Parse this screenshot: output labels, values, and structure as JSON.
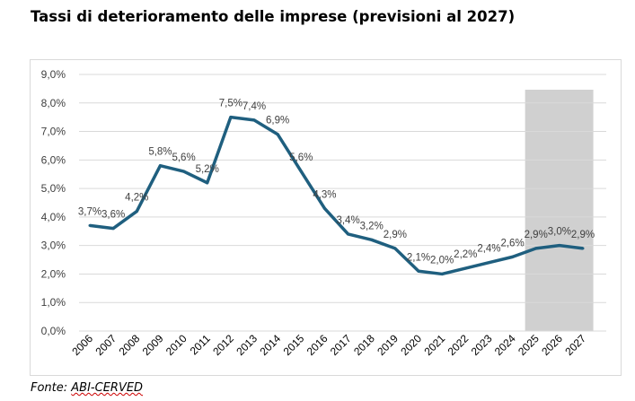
{
  "chart_data": {
    "type": "line",
    "title": "Tassi di deterioramento delle imprese (previsioni al 2027)",
    "categories": [
      "2006",
      "2007",
      "2008",
      "2009",
      "2010",
      "2011",
      "2012",
      "2013",
      "2014",
      "2015",
      "2016",
      "2017",
      "2018",
      "2019",
      "2020",
      "2021",
      "2022",
      "2023",
      "2024",
      "2025",
      "2026",
      "2027"
    ],
    "values": [
      3.7,
      3.6,
      4.2,
      5.8,
      5.6,
      5.2,
      7.5,
      7.4,
      6.9,
      5.6,
      4.3,
      3.4,
      3.2,
      2.9,
      2.1,
      2.0,
      2.2,
      2.4,
      2.6,
      2.9,
      3.0,
      2.9
    ],
    "data_labels": [
      "3,7%",
      "3,6%",
      "4,2%",
      "5,8%",
      "5,6%",
      "5,2%",
      "7,5%",
      "7,4%",
      "6,9%",
      "5,6%",
      "4,3%",
      "3,4%",
      "3,2%",
      "2,9%",
      "2,1%",
      "2,0%",
      "2,2%",
      "2,4%",
      "2,6%",
      "2,9%",
      "3,0%",
      "2,9%"
    ],
    "y_ticks": [
      "0,0%",
      "1,0%",
      "2,0%",
      "3,0%",
      "4,0%",
      "5,0%",
      "6,0%",
      "7,0%",
      "8,0%",
      "9,0%"
    ],
    "ylim": [
      0,
      9
    ],
    "grid": true,
    "forecast_shading": {
      "from": "2025",
      "to": "2027",
      "color": "#d0d0d0"
    },
    "line_color": "#1f5f7f",
    "xlabel": "",
    "ylabel": ""
  },
  "source": {
    "prefix": "Fonte: ",
    "name": "ABI-CERVED"
  }
}
